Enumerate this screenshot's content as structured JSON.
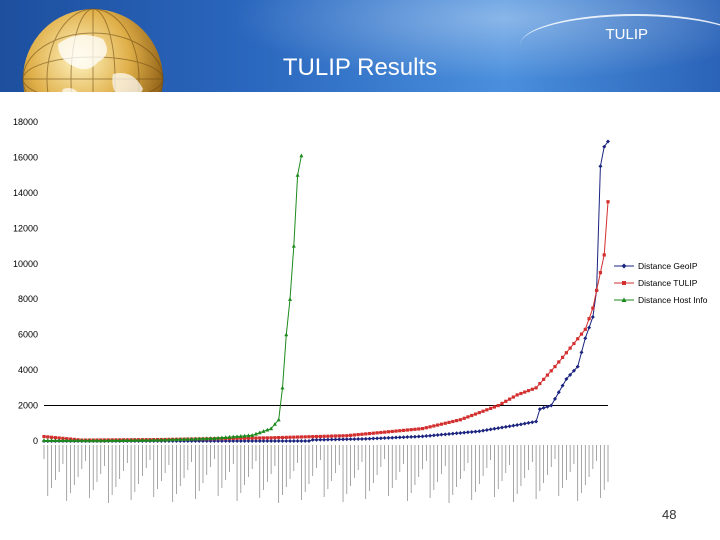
{
  "header": {
    "brand": "TULIP",
    "title": "TULIP Results"
  },
  "footer": {
    "page_number": "48"
  },
  "colors": {
    "geoip": "#1a237e",
    "tulip": "#d32f2f",
    "hostinfo": "#1b8a1b",
    "reference": "#000000"
  },
  "chart_data": {
    "type": "line",
    "title": "",
    "xlabel": "",
    "ylabel": "",
    "ylim": [
      0,
      18000
    ],
    "yticks": [
      0,
      2000,
      4000,
      6000,
      8000,
      10000,
      12000,
      14000,
      16000,
      18000
    ],
    "reference_line": 2000,
    "grid": false,
    "legend_position": "right",
    "n_points": 150,
    "series": [
      {
        "name": "Distance GeoIP",
        "color": "#1a237e",
        "marker": "diamond",
        "breakpoints": [
          [
            0,
            0
          ],
          [
            70,
            0
          ],
          [
            71,
            60
          ],
          [
            85,
            120
          ],
          [
            100,
            260
          ],
          [
            115,
            550
          ],
          [
            125,
            900
          ],
          [
            130,
            1100
          ],
          [
            131,
            1800
          ],
          [
            134,
            2000
          ],
          [
            138,
            3500
          ],
          [
            141,
            4200
          ],
          [
            143,
            5800
          ],
          [
            145,
            7000
          ],
          [
            146,
            8500
          ],
          [
            147,
            15500
          ],
          [
            148,
            16600
          ],
          [
            149,
            16900
          ]
        ]
      },
      {
        "name": "Distance TULIP",
        "color": "#d32f2f",
        "marker": "square",
        "breakpoints": [
          [
            0,
            250
          ],
          [
            10,
            50
          ],
          [
            30,
            80
          ],
          [
            60,
            180
          ],
          [
            80,
            300
          ],
          [
            100,
            700
          ],
          [
            110,
            1200
          ],
          [
            120,
            2000
          ],
          [
            125,
            2600
          ],
          [
            130,
            3000
          ],
          [
            135,
            4200
          ],
          [
            140,
            5500
          ],
          [
            143,
            6300
          ],
          [
            145,
            7500
          ],
          [
            146,
            8500
          ],
          [
            147,
            9500
          ],
          [
            148,
            10500
          ],
          [
            149,
            13500
          ]
        ]
      },
      {
        "name": "Distance Host Info",
        "color": "#1b8a1b",
        "marker": "triangle",
        "breakpoints": [
          [
            0,
            30
          ],
          [
            15,
            20
          ],
          [
            30,
            50
          ],
          [
            45,
            150
          ],
          [
            55,
            320
          ],
          [
            60,
            700
          ],
          [
            62,
            1200
          ],
          [
            63,
            3000
          ],
          [
            64,
            6000
          ],
          [
            65,
            8000
          ],
          [
            66,
            11000
          ],
          [
            67,
            15000
          ],
          [
            68,
            16100
          ]
        ]
      }
    ]
  }
}
